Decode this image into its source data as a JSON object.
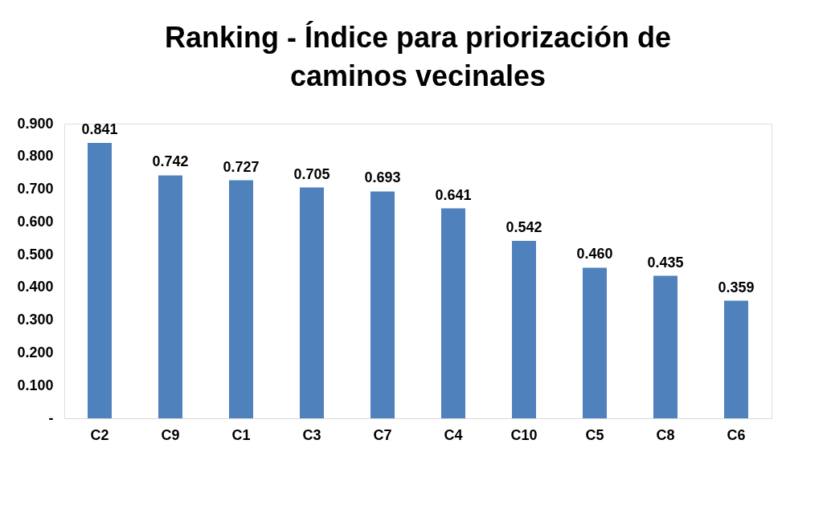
{
  "chart_data": {
    "type": "bar",
    "title": "Ranking - Índice para priorización de caminos vecinales",
    "categories": [
      "C2",
      "C9",
      "C1",
      "C3",
      "C7",
      "C4",
      "C10",
      "C5",
      "C8",
      "C6"
    ],
    "values": [
      0.841,
      0.742,
      0.727,
      0.705,
      0.693,
      0.641,
      0.542,
      0.46,
      0.435,
      0.359
    ],
    "value_labels": [
      "0.841",
      "0.742",
      "0.727",
      "0.705",
      "0.693",
      "0.641",
      "0.542",
      "0.460",
      "0.435",
      "0.359"
    ],
    "color": "#4f81bd",
    "ylim": [
      0,
      0.9
    ],
    "yticks": [
      {
        "value": 0,
        "label": "-"
      },
      {
        "value": 0.1,
        "label": "0.100"
      },
      {
        "value": 0.2,
        "label": "0.200"
      },
      {
        "value": 0.3,
        "label": "0.300"
      },
      {
        "value": 0.4,
        "label": "0.400"
      },
      {
        "value": 0.5,
        "label": "0.500"
      },
      {
        "value": 0.6,
        "label": "0.600"
      },
      {
        "value": 0.7,
        "label": "0.700"
      },
      {
        "value": 0.8,
        "label": "0.800"
      },
      {
        "value": 0.9,
        "label": "0.900"
      }
    ],
    "grid": false
  }
}
